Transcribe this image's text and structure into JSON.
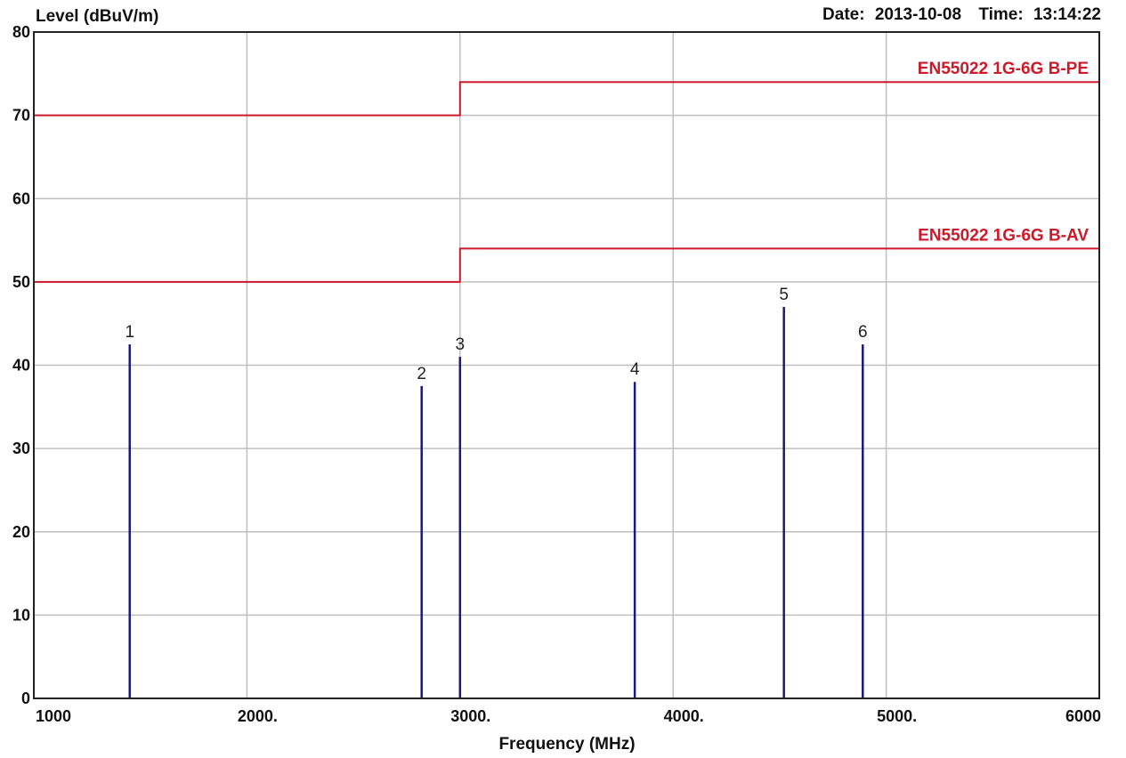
{
  "header": {
    "date_label": "Date:",
    "date_value": "2013-10-08",
    "time_label": "Time:",
    "time_value": "13:14:22"
  },
  "chart_data": {
    "type": "line",
    "ylabel": "Level (dBuV/m)",
    "xlabel": "Frequency (MHz)",
    "xlim": [
      1000,
      6000
    ],
    "ylim": [
      0,
      80
    ],
    "x_ticks": [
      {
        "value": 1000,
        "label": "1000"
      },
      {
        "value": 2000,
        "label": "2000."
      },
      {
        "value": 3000,
        "label": "3000."
      },
      {
        "value": 4000,
        "label": "4000."
      },
      {
        "value": 5000,
        "label": "5000."
      },
      {
        "value": 6000,
        "label": "6000"
      }
    ],
    "y_ticks": [
      {
        "value": 0,
        "label": "0"
      },
      {
        "value": 10,
        "label": "10"
      },
      {
        "value": 20,
        "label": "20"
      },
      {
        "value": 30,
        "label": "30"
      },
      {
        "value": 40,
        "label": "40"
      },
      {
        "value": 50,
        "label": "50"
      },
      {
        "value": 60,
        "label": "60"
      },
      {
        "value": 70,
        "label": "70"
      },
      {
        "value": 80,
        "label": "80"
      }
    ],
    "grid": true,
    "limit_lines": [
      {
        "name": "EN55022 1G-6G B-PE",
        "color": "#cc1a2a",
        "points": [
          [
            1000,
            70
          ],
          [
            3000,
            70
          ],
          [
            3000,
            74
          ],
          [
            6000,
            74
          ]
        ]
      },
      {
        "name": "EN55022 1G-6G B-AV",
        "color": "#cc1a2a",
        "points": [
          [
            1000,
            50
          ],
          [
            3000,
            50
          ],
          [
            3000,
            54
          ],
          [
            6000,
            54
          ]
        ]
      }
    ],
    "markers": [
      {
        "label": "1",
        "x": 1450,
        "y": 42.5
      },
      {
        "label": "2",
        "x": 2820,
        "y": 37.5
      },
      {
        "label": "3",
        "x": 3000,
        "y": 41.0
      },
      {
        "label": "4",
        "x": 3820,
        "y": 38.0
      },
      {
        "label": "5",
        "x": 4520,
        "y": 47.0
      },
      {
        "label": "6",
        "x": 4890,
        "y": 42.5
      }
    ],
    "marker_color": "#1a1a7a"
  }
}
